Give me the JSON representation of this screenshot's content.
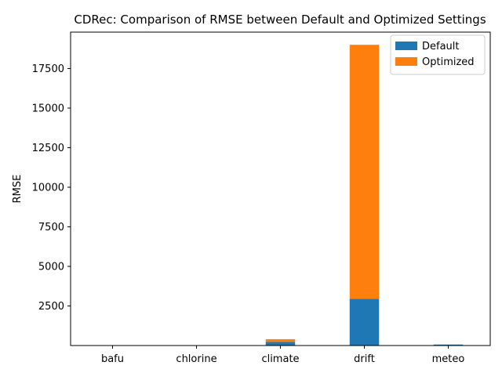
{
  "chart_data": {
    "type": "bar",
    "stacked": true,
    "title": "CDRec: Comparison of RMSE between Default and Optimized Settings",
    "xlabel": "",
    "ylabel": "RMSE",
    "categories": [
      "bafu",
      "chlorine",
      "climate",
      "drift",
      "meteo"
    ],
    "series": [
      {
        "name": "Default",
        "color": "#1f77b4",
        "values": [
          1,
          0.5,
          230,
          2950,
          60
        ]
      },
      {
        "name": "Optimized",
        "color": "#ff7f0e",
        "values": [
          0.5,
          0.2,
          170,
          16050,
          10
        ]
      }
    ],
    "ylim": [
      0,
      19800
    ],
    "yticks": [
      2500,
      5000,
      7500,
      10000,
      12500,
      15000,
      17500
    ],
    "ytick_labels": [
      "2500",
      "5000",
      "7500",
      "10000",
      "12500",
      "15000",
      "17500"
    ],
    "legend_position": "top-right",
    "grid": false
  }
}
